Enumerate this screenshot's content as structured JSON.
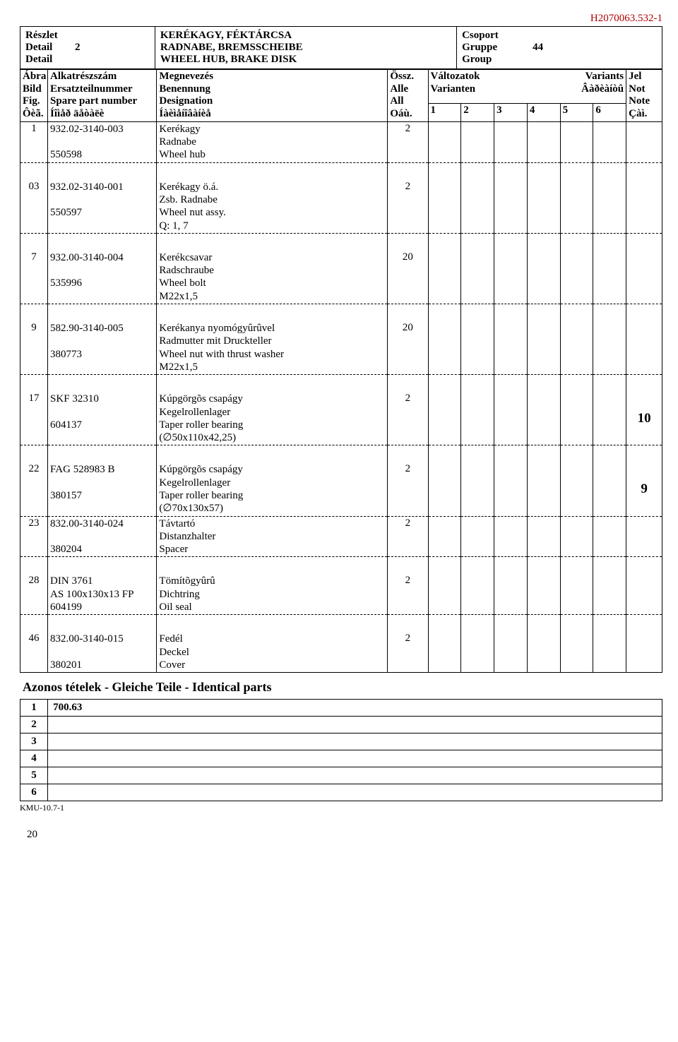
{
  "doc_id": "H2070063.532-1",
  "header": {
    "detail_labels": [
      "Részlet",
      "Detail",
      "Detail"
    ],
    "detail_value": "2",
    "titles": [
      "KERÉKAGY, FÉKTÁRCSA",
      "RADNABE, BREMSSCHEIBE",
      "WHEEL HUB, BRAKE DISK"
    ],
    "group_labels": [
      "Csoport",
      "Gruppe",
      "Group"
    ],
    "group_value": "44"
  },
  "thead": {
    "fig": [
      "Ábra",
      "Bild",
      "Fig.",
      "Ôèã."
    ],
    "part": [
      "Alkatrészszám",
      "Ersatzteilnummer",
      "Spare part number",
      "Íîìåð äåòàëè"
    ],
    "desg": [
      "Megnevezés",
      "Benennung",
      "Designation",
      "Íàèìåíîâàíèå"
    ],
    "all": [
      "Össz.",
      "Alle",
      "All",
      "Oáù."
    ],
    "variants_top": {
      "l1a": "Változatok",
      "l1b": "Variants",
      "l2a": "Varianten",
      "l2b": "Âàðèàíòû"
    },
    "var_cols": [
      "1",
      "2",
      "3",
      "4",
      "5",
      "6"
    ],
    "note": [
      "Jel",
      "Not",
      "Note",
      "Çàì."
    ]
  },
  "rows": [
    {
      "fig": "1",
      "parts": [
        "932.02-3140-003",
        "",
        "550598"
      ],
      "desg": [
        "Kerékagy",
        "Radnabe",
        "Wheel hub"
      ],
      "all": "2",
      "note": ""
    },
    {
      "fig": "03",
      "parts": [
        "932.02-3140-001",
        "",
        "550597"
      ],
      "desg": [
        "Kerékagy ö.á.",
        "Zsb. Radnabe",
        "Wheel nut assy.",
        "Q: 1, 7"
      ],
      "all": "2",
      "note": ""
    },
    {
      "fig": "7",
      "parts": [
        "932.00-3140-004",
        "",
        "535996"
      ],
      "desg": [
        "Kerékcsavar",
        "Radschraube",
        "Wheel bolt",
        "M22x1,5"
      ],
      "all": "20",
      "note": ""
    },
    {
      "fig": "9",
      "parts": [
        "582.90-3140-005",
        "",
        "380773"
      ],
      "desg": [
        "Kerékanya nyomógyûrûvel",
        "Radmutter mit Druckteller",
        "Wheel nut with thrust washer",
        "M22x1,5"
      ],
      "all": "20",
      "note": ""
    },
    {
      "fig": "17",
      "parts": [
        "SKF 32310",
        "",
        "604137"
      ],
      "desg": [
        "Kúpgörgõs csapágy",
        "Kegelrollenlager",
        "Taper roller bearing",
        "(∅50x110x42,25)"
      ],
      "all": "2",
      "note": "10"
    },
    {
      "fig": "22",
      "parts": [
        "FAG 528983 B",
        "",
        "380157"
      ],
      "desg": [
        "Kúpgörgõs csapágy",
        "Kegelrollenlager",
        "Taper roller bearing",
        " (∅70x130x57)"
      ],
      "all": "2",
      "note": "9"
    },
    {
      "fig": "23",
      "parts": [
        "832.00-3140-024",
        "",
        "380204"
      ],
      "desg": [
        "Távtartó",
        "Distanzhalter",
        "Spacer"
      ],
      "all": "2",
      "note": ""
    },
    {
      "fig": "28",
      "parts": [
        "DIN 3761",
        "AS 100x130x13 FP",
        "604199"
      ],
      "desg": [
        "Tömítõgyûrû",
        "Dichtring",
        "Oil seal"
      ],
      "all": "2",
      "note": ""
    },
    {
      "fig": "46",
      "parts": [
        "832.00-3140-015",
        "",
        "380201"
      ],
      "desg": [
        "Fedél",
        "Deckel",
        "Cover"
      ],
      "all": "2",
      "note": ""
    }
  ],
  "identical_title": "Azonos tételek - Gleiche Teile - Identical parts",
  "identical": [
    {
      "idx": "1",
      "val": "700.63"
    },
    {
      "idx": "2",
      "val": ""
    },
    {
      "idx": "3",
      "val": ""
    },
    {
      "idx": "4",
      "val": ""
    },
    {
      "idx": "5",
      "val": ""
    },
    {
      "idx": "6",
      "val": ""
    }
  ],
  "footer_id": "KMU-10.7-1",
  "page_number": "20"
}
